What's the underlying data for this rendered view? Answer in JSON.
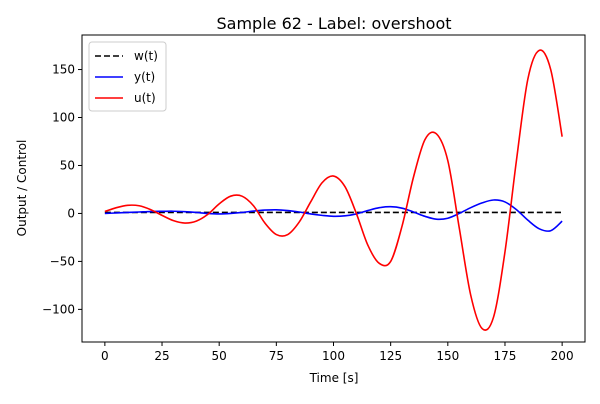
{
  "chart_data": {
    "type": "line",
    "title": "Sample 62 - Label: overshoot",
    "xlabel": "Time [s]",
    "ylabel": "Output / Control",
    "xlim": [
      -10,
      210
    ],
    "ylim": [
      -134,
      186
    ],
    "x_ticks": [
      0,
      25,
      50,
      75,
      100,
      125,
      150,
      175,
      200
    ],
    "y_ticks": [
      -100,
      -50,
      0,
      50,
      100,
      150
    ],
    "x_tick_labels": [
      "0",
      "25",
      "50",
      "75",
      "100",
      "125",
      "150",
      "175",
      "200"
    ],
    "y_tick_labels": [
      "−100",
      "−50",
      "0",
      "50",
      "100",
      "150"
    ],
    "grid": false,
    "legend_position": "top-left",
    "x": [
      0,
      5,
      10,
      15,
      20,
      25,
      30,
      35,
      40,
      45,
      50,
      55,
      60,
      65,
      70,
      75,
      80,
      85,
      90,
      95,
      100,
      105,
      110,
      115,
      120,
      125,
      130,
      135,
      140,
      145,
      150,
      155,
      160,
      165,
      170,
      175,
      180,
      185,
      190,
      195,
      200
    ],
    "series": [
      {
        "name": "w(t)",
        "color": "#000000",
        "style": "dashed",
        "values": [
          1,
          1,
          1,
          1,
          1,
          1,
          1,
          1,
          1,
          1,
          1,
          1,
          1,
          1,
          1,
          1,
          1,
          1,
          1,
          1,
          1,
          1,
          1,
          1,
          1,
          1,
          1,
          1,
          1,
          1,
          1,
          1,
          1,
          1,
          1,
          1,
          1,
          1,
          1,
          1,
          1
        ]
      },
      {
        "name": "y(t)",
        "color": "#0000ff",
        "style": "solid",
        "values": [
          0,
          0.5,
          1,
          1.5,
          2,
          2.2,
          2.3,
          1.8,
          1,
          0,
          -0.5,
          0,
          1,
          2.5,
          3.5,
          3.8,
          3,
          1.5,
          -0.5,
          -2,
          -3,
          -2.5,
          -0.5,
          3,
          6,
          7,
          5.5,
          1.5,
          -3,
          -6,
          -5,
          0,
          6,
          11,
          14,
          12,
          4,
          -7,
          -16,
          -18,
          -8
        ]
      },
      {
        "name": "u(t)",
        "color": "#ff0000",
        "style": "solid",
        "values": [
          2,
          6,
          8.5,
          8,
          4,
          -2,
          -7.5,
          -10,
          -8,
          -1,
          10,
          18,
          18,
          8,
          -10,
          -22,
          -22,
          -9,
          12,
          32,
          39,
          28,
          0,
          -33,
          -52,
          -50,
          -13,
          38,
          77,
          83,
          55,
          -15,
          -85,
          -120,
          -108,
          -40,
          55,
          140,
          170,
          150,
          80
        ]
      }
    ]
  }
}
